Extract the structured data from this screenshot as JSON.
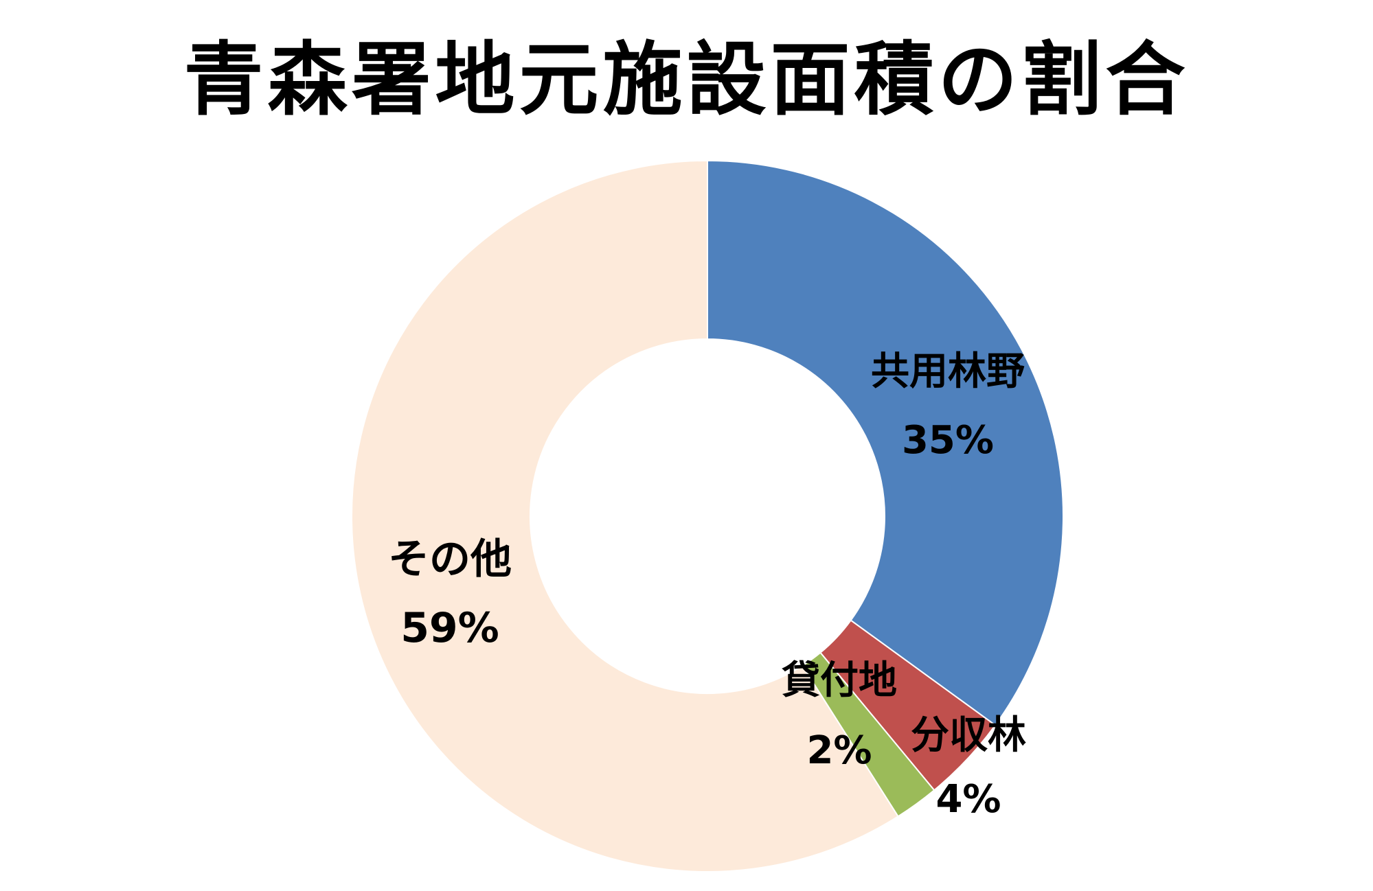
{
  "chart_data": {
    "type": "pie",
    "title": "青森署地元施設面積の割合",
    "donut": true,
    "start_angle_deg": 0,
    "direction": "clockwise",
    "slices": [
      {
        "label": "共用林野",
        "value": 35,
        "value_label": "35%",
        "color": "#4f81bd"
      },
      {
        "label": "分収林",
        "value": 4,
        "value_label": "4%",
        "color": "#c0504d"
      },
      {
        "label": "貸付地",
        "value": 2,
        "value_label": "2%",
        "color": "#9bbb59"
      },
      {
        "label": "その他",
        "value": 59,
        "value_label": "59%",
        "color": "#fdeada"
      }
    ],
    "legend": "none"
  }
}
